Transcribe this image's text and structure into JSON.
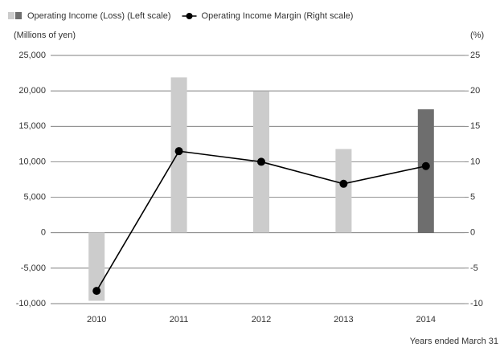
{
  "chart_data": {
    "type": "bar-line",
    "y_axis_label": "(Millions of yen)",
    "y2_axis_label": "(%)",
    "x_axis_note": "Years ended March 31",
    "categories": [
      "2010",
      "2011",
      "2012",
      "2013",
      "2014"
    ],
    "series": [
      {
        "name": "Operating Income (Loss) (Left scale)",
        "type": "bar",
        "color": "#cccccc",
        "colors": [
          "#cccccc",
          "#cccccc",
          "#cccccc",
          "#cccccc",
          "#6e6e6e"
        ],
        "values": [
          -9600,
          21900,
          19900,
          11800,
          17400
        ]
      },
      {
        "name": "Operating Income Margin (Right scale)",
        "type": "line",
        "axis": "y2",
        "color": "#000000",
        "values": [
          -8.2,
          11.5,
          10.0,
          6.9,
          9.4
        ]
      }
    ],
    "ylim": [
      -10000,
      25000
    ],
    "yticks": [
      {
        "value": -10000,
        "label": "-10,000"
      },
      {
        "value": -5000,
        "label": "-5,000"
      },
      0,
      {
        "value": 5000,
        "label": "5,000"
      },
      {
        "value": 10000,
        "label": "10,000"
      },
      {
        "value": 15000,
        "label": "15,000"
      },
      {
        "value": 20000,
        "label": "20,000"
      },
      {
        "value": 25000,
        "label": "25,000"
      }
    ],
    "y2lim": [
      -10,
      25
    ],
    "y2ticks": [
      -10,
      -5,
      0,
      5,
      10,
      15,
      20,
      25
    ],
    "grid": true,
    "legend": "top-left"
  }
}
